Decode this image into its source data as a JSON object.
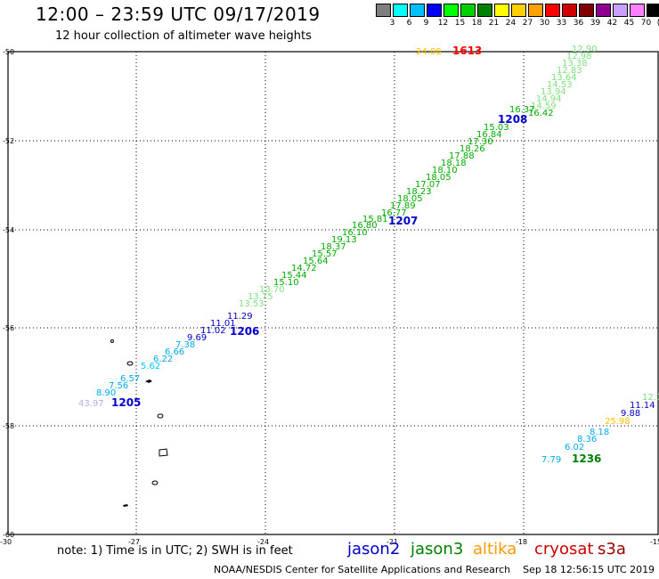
{
  "header": {
    "title": "12:00 – 23:59 UTC 09/17/2019",
    "subtitle": "12 hour collection of altimeter wave heights"
  },
  "scale": {
    "labels": [
      "3",
      "6",
      "9",
      "12",
      "15",
      "18",
      "21",
      "24",
      "27",
      "30",
      "33",
      "36",
      "39",
      "42",
      "45",
      "70"
    ],
    "unit": "(ft)",
    "colors": [
      "#7f7f7f",
      "#00ffff",
      "#00bfff",
      "#0000ff",
      "#00ff00",
      "#00d000",
      "#008000",
      "#ffff00",
      "#ffd000",
      "#ffa000",
      "#ff0000",
      "#d00000",
      "#800000",
      "#900090",
      "#c8a0ff",
      "#ff80ff",
      "#000000"
    ]
  },
  "axes": {
    "y_ticks": [
      "-50",
      "-52",
      "-54",
      "-56",
      "-58",
      "-60"
    ],
    "x_ticks": [
      "-30",
      "-27",
      "-24",
      "-21",
      "-18",
      "-15"
    ]
  },
  "map_labels": [
    {
      "text": "24.88",
      "color": "#ffc000"
    },
    {
      "text": "1613",
      "color": "#ff0000",
      "bold": true
    },
    {
      "text": "12.90",
      "color": "#80e080"
    },
    {
      "text": "12.98",
      "color": "#80e080"
    },
    {
      "text": "13.38",
      "color": "#80e080"
    },
    {
      "text": "12.83",
      "color": "#80e080"
    },
    {
      "text": "13.64",
      "color": "#80e080"
    },
    {
      "text": "14.53",
      "color": "#80e080"
    },
    {
      "text": "13.94",
      "color": "#80e080"
    },
    {
      "text": "14.94",
      "color": "#80e080"
    },
    {
      "text": "14.59",
      "color": "#80e080"
    },
    {
      "text": "16.37",
      "color": "#00aa00"
    },
    {
      "text": "16.42",
      "color": "#00aa00"
    },
    {
      "text": "1208",
      "color": "#0000cc",
      "bold": true
    },
    {
      "text": "15.03",
      "color": "#00aa00"
    },
    {
      "text": "16.84",
      "color": "#00aa00"
    },
    {
      "text": "17.30",
      "color": "#00aa00"
    },
    {
      "text": "18.26",
      "color": "#00aa00"
    },
    {
      "text": "17.88",
      "color": "#00aa00"
    },
    {
      "text": "18.18",
      "color": "#00aa00"
    },
    {
      "text": "18.10",
      "color": "#00aa00"
    },
    {
      "text": "18.05",
      "color": "#00aa00"
    },
    {
      "text": "17.07",
      "color": "#00aa00"
    },
    {
      "text": "18.23",
      "color": "#00aa00"
    },
    {
      "text": "18.05",
      "color": "#00aa00"
    },
    {
      "text": "17.89",
      "color": "#00aa00"
    },
    {
      "text": "16.77",
      "color": "#00aa00"
    },
    {
      "text": "15.81",
      "color": "#00aa00"
    },
    {
      "text": "1207",
      "color": "#0000cc",
      "bold": true
    },
    {
      "text": "16.80",
      "color": "#00aa00"
    },
    {
      "text": "16.10",
      "color": "#00aa00"
    },
    {
      "text": "19.13",
      "color": "#00aa00"
    },
    {
      "text": "18.37",
      "color": "#00aa00"
    },
    {
      "text": "15.57",
      "color": "#00aa00"
    },
    {
      "text": "15.64",
      "color": "#00aa00"
    },
    {
      "text": "14.72",
      "color": "#00aa00"
    },
    {
      "text": "15.44",
      "color": "#00aa00"
    },
    {
      "text": "15.10",
      "color": "#00aa00"
    },
    {
      "text": "13.70",
      "color": "#80e080"
    },
    {
      "text": "13.75",
      "color": "#80e080"
    },
    {
      "text": "13.53",
      "color": "#80e080"
    },
    {
      "text": "11.29",
      "color": "#0000cc"
    },
    {
      "text": "11.01",
      "color": "#0000cc"
    },
    {
      "text": "11.02",
      "color": "#0000cc"
    },
    {
      "text": "1206",
      "color": "#0000cc",
      "bold": true
    },
    {
      "text": "9.69",
      "color": "#0000cc"
    },
    {
      "text": "7.38",
      "color": "#00aaee"
    },
    {
      "text": "6.66",
      "color": "#00aaee"
    },
    {
      "text": "6.22",
      "color": "#00aaee"
    },
    {
      "text": "5.62",
      "color": "#00ccee"
    },
    {
      "text": "6.57",
      "color": "#00aaee"
    },
    {
      "text": "7.56",
      "color": "#00aaee"
    },
    {
      "text": "8.90",
      "color": "#00aaee"
    },
    {
      "text": "43.97",
      "color": "#b0b0e8"
    },
    {
      "text": "1205",
      "color": "#0000cc",
      "bold": true
    },
    {
      "text": "12.7",
      "color": "#80e080"
    },
    {
      "text": "11.14",
      "color": "#0000cc"
    },
    {
      "text": "9.88",
      "color": "#0000cc"
    },
    {
      "text": "25.98",
      "color": "#ffc000"
    },
    {
      "text": "8.18",
      "color": "#00aaee"
    },
    {
      "text": "8.36",
      "color": "#00aaee"
    },
    {
      "text": "6.02",
      "color": "#00aaee"
    },
    {
      "text": "7.79",
      "color": "#00aaee"
    },
    {
      "text": "1236",
      "color": "#008000",
      "bold": true
    }
  ],
  "footer": {
    "note": "note: 1) Time is in UTC; 2) SWH is in feet",
    "legend": [
      {
        "text": "jason2",
        "color": "#0000cc"
      },
      {
        "text": "jason3",
        "color": "#008000"
      },
      {
        "text": "altika",
        "color": "#ff9900"
      },
      {
        "text": "cryosat",
        "color": "#cc0000"
      },
      {
        "text": "s3a",
        "color": "#990000"
      }
    ],
    "credit": "NOAA/NESDIS Center for Satellite Applications and Research",
    "timestamp": "Sep 18 12:56:15 UTC 2019"
  }
}
